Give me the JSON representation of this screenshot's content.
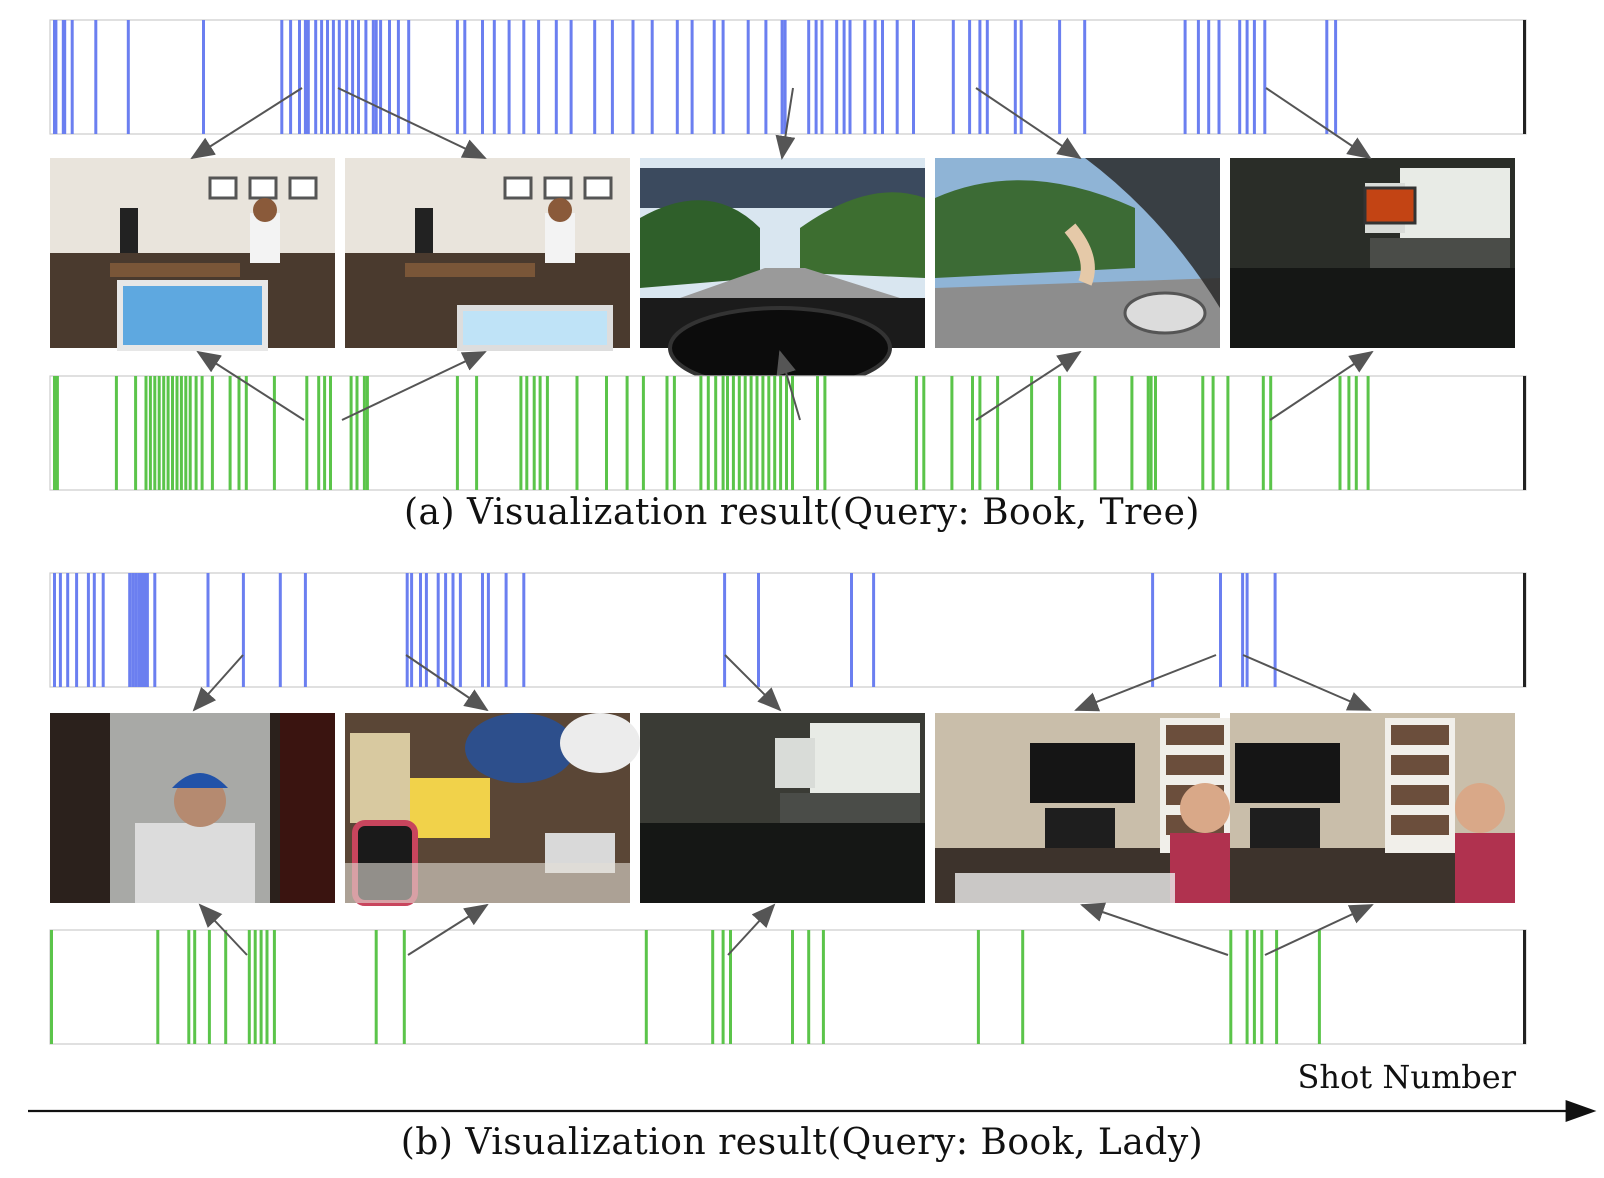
{
  "panels": [
    {
      "id": "a",
      "caption": "(a) Visualization result(Query: Book, Tree)",
      "blue_bars": [
        [
          0.002,
          0.005
        ],
        [
          0.008,
          0.011
        ],
        [
          0.014,
          0.016
        ],
        [
          0.03,
          0.032
        ],
        [
          0.052,
          0.054
        ],
        [
          0.103,
          0.105
        ],
        [
          0.156,
          0.158
        ],
        [
          0.162,
          0.164
        ],
        [
          0.168,
          0.17
        ],
        [
          0.172,
          0.176
        ],
        [
          0.179,
          0.181
        ],
        [
          0.183,
          0.185
        ],
        [
          0.187,
          0.189
        ],
        [
          0.191,
          0.193
        ],
        [
          0.195,
          0.197
        ],
        [
          0.2,
          0.202
        ],
        [
          0.204,
          0.206
        ],
        [
          0.208,
          0.21
        ],
        [
          0.213,
          0.215
        ],
        [
          0.218,
          0.22
        ],
        [
          0.223,
          0.225
        ],
        [
          0.229,
          0.231
        ],
        [
          0.235,
          0.237
        ],
        [
          0.22,
          0.222
        ],
        [
          0.242,
          0.244
        ],
        [
          0.275,
          0.277
        ],
        [
          0.28,
          0.282
        ],
        [
          0.292,
          0.294
        ],
        [
          0.3,
          0.302
        ],
        [
          0.31,
          0.312
        ],
        [
          0.32,
          0.322
        ],
        [
          0.33,
          0.332
        ],
        [
          0.342,
          0.344
        ],
        [
          0.352,
          0.354
        ],
        [
          0.368,
          0.37
        ],
        [
          0.38,
          0.382
        ],
        [
          0.394,
          0.396
        ],
        [
          0.407,
          0.409
        ],
        [
          0.424,
          0.426
        ],
        [
          0.449,
          0.451
        ],
        [
          0.434,
          0.436
        ],
        [
          0.455,
          0.457
        ],
        [
          0.472,
          0.474
        ],
        [
          0.484,
          0.486
        ],
        [
          0.495,
          0.497
        ],
        [
          0.513,
          0.515
        ],
        [
          0.497,
          0.499
        ],
        [
          0.518,
          0.52
        ],
        [
          0.522,
          0.524
        ],
        [
          0.532,
          0.534
        ],
        [
          0.537,
          0.539
        ],
        [
          0.541,
          0.543
        ],
        [
          0.551,
          0.553
        ],
        [
          0.558,
          0.56
        ],
        [
          0.563,
          0.565
        ],
        [
          0.573,
          0.575
        ],
        [
          0.584,
          0.586
        ],
        [
          0.611,
          0.613
        ],
        [
          0.622,
          0.624
        ],
        [
          0.629,
          0.631
        ],
        [
          0.634,
          0.636
        ],
        [
          0.653,
          0.655
        ],
        [
          0.657,
          0.659
        ],
        [
          0.683,
          0.685
        ],
        [
          0.7,
          0.702
        ],
        [
          0.768,
          0.77
        ],
        [
          0.777,
          0.779
        ],
        [
          0.784,
          0.786
        ],
        [
          0.791,
          0.793
        ],
        [
          0.805,
          0.807
        ],
        [
          0.81,
          0.812
        ],
        [
          0.815,
          0.817
        ],
        [
          0.822,
          0.824
        ],
        [
          0.864,
          0.866
        ],
        [
          0.87,
          0.872
        ]
      ],
      "green_bars": [
        [
          0.002,
          0.006
        ],
        [
          0.044,
          0.046
        ],
        [
          0.057,
          0.059
        ],
        [
          0.064,
          0.066
        ],
        [
          0.067,
          0.069
        ],
        [
          0.07,
          0.072
        ],
        [
          0.073,
          0.075
        ],
        [
          0.076,
          0.078
        ],
        [
          0.079,
          0.081
        ],
        [
          0.082,
          0.084
        ],
        [
          0.085,
          0.087
        ],
        [
          0.088,
          0.09
        ],
        [
          0.091,
          0.093
        ],
        [
          0.094,
          0.096
        ],
        [
          0.098,
          0.1
        ],
        [
          0.102,
          0.104
        ],
        [
          0.109,
          0.111
        ],
        [
          0.121,
          0.123
        ],
        [
          0.127,
          0.129
        ],
        [
          0.132,
          0.134
        ],
        [
          0.151,
          0.153
        ],
        [
          0.173,
          0.175
        ],
        [
          0.181,
          0.183
        ],
        [
          0.185,
          0.187
        ],
        [
          0.189,
          0.191
        ],
        [
          0.203,
          0.205
        ],
        [
          0.207,
          0.209
        ],
        [
          0.212,
          0.214
        ],
        [
          0.214,
          0.216
        ],
        [
          0.275,
          0.277
        ],
        [
          0.288,
          0.29
        ],
        [
          0.318,
          0.32
        ],
        [
          0.322,
          0.324
        ],
        [
          0.327,
          0.329
        ],
        [
          0.331,
          0.333
        ],
        [
          0.336,
          0.338
        ],
        [
          0.356,
          0.358
        ],
        [
          0.376,
          0.378
        ],
        [
          0.39,
          0.392
        ],
        [
          0.401,
          0.403
        ],
        [
          0.417,
          0.419
        ],
        [
          0.422,
          0.424
        ],
        [
          0.44,
          0.442
        ],
        [
          0.445,
          0.447
        ],
        [
          0.45,
          0.452
        ],
        [
          0.455,
          0.457
        ],
        [
          0.458,
          0.46
        ],
        [
          0.462,
          0.464
        ],
        [
          0.466,
          0.468
        ],
        [
          0.47,
          0.472
        ],
        [
          0.474,
          0.476
        ],
        [
          0.478,
          0.48
        ],
        [
          0.482,
          0.484
        ],
        [
          0.486,
          0.488
        ],
        [
          0.49,
          0.492
        ],
        [
          0.494,
          0.496
        ],
        [
          0.498,
          0.5
        ],
        [
          0.502,
          0.504
        ],
        [
          0.519,
          0.521
        ],
        [
          0.524,
          0.526
        ],
        [
          0.586,
          0.588
        ],
        [
          0.591,
          0.593
        ],
        [
          0.61,
          0.612
        ],
        [
          0.624,
          0.626
        ],
        [
          0.629,
          0.631
        ],
        [
          0.641,
          0.643
        ],
        [
          0.664,
          0.666
        ],
        [
          0.683,
          0.685
        ],
        [
          0.707,
          0.709
        ],
        [
          0.732,
          0.734
        ],
        [
          0.743,
          0.745
        ],
        [
          0.745,
          0.747
        ],
        [
          0.748,
          0.75
        ],
        [
          0.78,
          0.782
        ],
        [
          0.787,
          0.789
        ],
        [
          0.797,
          0.799
        ],
        [
          0.821,
          0.823
        ],
        [
          0.826,
          0.828
        ],
        [
          0.873,
          0.875
        ],
        [
          0.879,
          0.881
        ],
        [
          0.884,
          0.886
        ],
        [
          0.892,
          0.894
        ]
      ]
    },
    {
      "id": "b",
      "caption": "(b) Visualization result(Query: Book, Lady)",
      "blue_bars": [
        [
          0.002,
          0.004
        ],
        [
          0.006,
          0.008
        ],
        [
          0.011,
          0.013
        ],
        [
          0.017,
          0.019
        ],
        [
          0.025,
          0.027
        ],
        [
          0.029,
          0.031
        ],
        [
          0.035,
          0.037
        ],
        [
          0.053,
          0.055
        ],
        [
          0.055,
          0.057
        ],
        [
          0.057,
          0.059
        ],
        [
          0.059,
          0.061
        ],
        [
          0.061,
          0.063
        ],
        [
          0.063,
          0.065
        ],
        [
          0.065,
          0.067
        ],
        [
          0.07,
          0.072
        ],
        [
          0.106,
          0.108
        ],
        [
          0.13,
          0.132
        ],
        [
          0.155,
          0.157
        ],
        [
          0.172,
          0.174
        ],
        [
          0.241,
          0.243
        ],
        [
          0.244,
          0.246
        ],
        [
          0.25,
          0.252
        ],
        [
          0.254,
          0.256
        ],
        [
          0.262,
          0.264
        ],
        [
          0.267,
          0.269
        ],
        [
          0.272,
          0.274
        ],
        [
          0.277,
          0.279
        ],
        [
          0.292,
          0.294
        ],
        [
          0.296,
          0.298
        ],
        [
          0.308,
          0.31
        ],
        [
          0.32,
          0.322
        ],
        [
          0.456,
          0.458
        ],
        [
          0.479,
          0.481
        ],
        [
          0.542,
          0.544
        ],
        [
          0.557,
          0.559
        ],
        [
          0.746,
          0.748
        ],
        [
          0.792,
          0.794
        ],
        [
          0.807,
          0.809
        ],
        [
          0.81,
          0.812
        ],
        [
          0.829,
          0.831
        ]
      ],
      "green_bars": [
        [
          0.0,
          0.002
        ],
        [
          0.072,
          0.074
        ],
        [
          0.093,
          0.095
        ],
        [
          0.097,
          0.099
        ],
        [
          0.107,
          0.109
        ],
        [
          0.118,
          0.12
        ],
        [
          0.134,
          0.136
        ],
        [
          0.138,
          0.14
        ],
        [
          0.142,
          0.144
        ],
        [
          0.146,
          0.148
        ],
        [
          0.151,
          0.153
        ],
        [
          0.22,
          0.222
        ],
        [
          0.239,
          0.241
        ],
        [
          0.403,
          0.405
        ],
        [
          0.448,
          0.45
        ],
        [
          0.455,
          0.457
        ],
        [
          0.46,
          0.462
        ],
        [
          0.502,
          0.504
        ],
        [
          0.513,
          0.515
        ],
        [
          0.523,
          0.525
        ],
        [
          0.628,
          0.63
        ],
        [
          0.658,
          0.66
        ],
        [
          0.799,
          0.801
        ],
        [
          0.81,
          0.812
        ],
        [
          0.815,
          0.817
        ],
        [
          0.82,
          0.822
        ],
        [
          0.83,
          0.832
        ],
        [
          0.859,
          0.861
        ]
      ]
    }
  ],
  "axis": {
    "label": "Shot Number"
  },
  "colors": {
    "blue": "#6b7ff0",
    "green": "#5bc44a",
    "arrow": "#555555",
    "frame": "#cccccc"
  }
}
